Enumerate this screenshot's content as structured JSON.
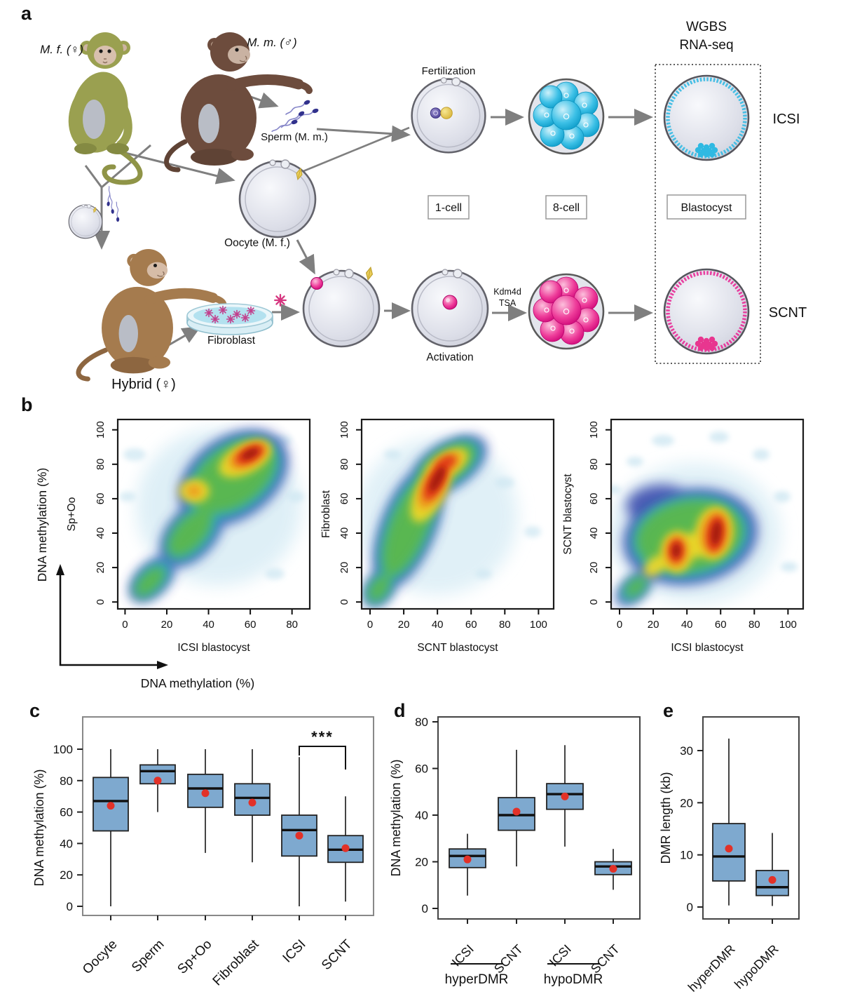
{
  "figure": {
    "panel_labels": {
      "a": "a",
      "b": "b",
      "c": "c",
      "d": "d",
      "e": "e"
    }
  },
  "panel_a": {
    "female_monkey_label": "M. f. (♀)",
    "male_monkey_label": "M. m. (♂)",
    "sperm_label": "Sperm (M. m.)",
    "oocyte_label": "Oocyte (M. f.)",
    "hybrid_label": "Hybrid (♀)",
    "fibroblast_label": "Fibroblast",
    "fertilization_label": "Fertilization",
    "activation_label": "Activation",
    "kdm4d_label": "Kdm4d",
    "tsa_label": "TSA",
    "stage_1cell": "1-cell",
    "stage_8cell": "8-cell",
    "stage_blastocyst": "Blastocyst",
    "assay_line1": "WGBS",
    "assay_line2": "RNA-seq",
    "icsi_label": "ICSI",
    "scnt_label": "SCNT"
  },
  "panel_b": {
    "outer_ylabel": "DNA methylation (%)",
    "outer_xlabel": "DNA methylation (%)",
    "plots": [
      {
        "ylabel": "Sp+Oo",
        "xlabel": "ICSI blastocyst"
      },
      {
        "ylabel": "Fibroblast",
        "xlabel": "SCNT blastocyst"
      },
      {
        "ylabel": "SCNT blastocyst",
        "xlabel": "ICSI blastocyst"
      }
    ]
  },
  "panel_c": {
    "ylabel": "DNA methylation (%)",
    "significance": "***"
  },
  "panel_d": {
    "ylabel": "DNA methylation (%)",
    "groups": [
      {
        "label": "hyperDMR"
      },
      {
        "label": "hypoDMR"
      }
    ]
  },
  "panel_e": {
    "ylabel": "DMR length (kb)"
  },
  "chart_data": [
    {
      "type": "heatmap",
      "subtype": "smoothed-density-scatter",
      "title": "Sp+Oo vs ICSI blastocyst DNA methylation",
      "xlabel": "ICSI blastocyst",
      "ylabel": "Sp+Oo",
      "xlim": [
        0,
        88
      ],
      "ylim": [
        0,
        105
      ],
      "xticks": [
        0,
        20,
        40,
        60,
        80
      ],
      "yticks": [
        0,
        20,
        40,
        60,
        80,
        100
      ],
      "density_peaks": [
        {
          "x": 59,
          "y": 85,
          "intensity": "high (red)"
        },
        {
          "x": 33,
          "y": 65,
          "intensity": "medium (yellow)"
        },
        {
          "x": 12,
          "y": 12,
          "intensity": "low (green), diagonal tail to origin"
        }
      ]
    },
    {
      "type": "heatmap",
      "subtype": "smoothed-density-scatter",
      "title": "Fibroblast vs SCNT blastocyst DNA methylation",
      "xlabel": "SCNT blastocyst",
      "ylabel": "Fibroblast",
      "xlim": [
        0,
        105
      ],
      "ylim": [
        0,
        105
      ],
      "xticks": [
        0,
        20,
        40,
        60,
        80,
        100
      ],
      "yticks": [
        0,
        20,
        40,
        60,
        80,
        100
      ],
      "density_peaks": [
        {
          "x": 39,
          "y": 70,
          "intensity": "high (red), elongated 30-50 x 55-85"
        },
        {
          "x": 23,
          "y": 44,
          "intensity": "medium (green band down to origin)"
        }
      ]
    },
    {
      "type": "heatmap",
      "subtype": "smoothed-density-scatter",
      "title": "SCNT blastocyst vs ICSI blastocyst DNA methylation",
      "xlabel": "ICSI blastocyst",
      "ylabel": "SCNT blastocyst",
      "xlim": [
        0,
        105
      ],
      "ylim": [
        0,
        105
      ],
      "xticks": [
        0,
        20,
        40,
        60,
        80,
        100
      ],
      "yticks": [
        0,
        20,
        40,
        60,
        80,
        100
      ],
      "density_peaks": [
        {
          "x": 33,
          "y": 30,
          "intensity": "high (red)"
        },
        {
          "x": 57,
          "y": 40,
          "intensity": "high (red, larger)"
        },
        {
          "x": 10,
          "y": 8,
          "intensity": "green tail to origin; sparse speckles above y=70"
        }
      ]
    },
    {
      "type": "box",
      "title": "Panel c: DNA methylation (%) by sample",
      "ylabel": "DNA methylation (%)",
      "ylim": [
        0,
        118
      ],
      "yticks": [
        0,
        20,
        40,
        60,
        80,
        100
      ],
      "significance": {
        "pair": [
          "ICSI",
          "SCNT"
        ],
        "stars": "***"
      },
      "boxes": [
        {
          "label": "Oocyte",
          "whisker_low": 0,
          "q1": 48,
          "median": 67,
          "q3": 82,
          "whisker_high": 100,
          "mean": 64
        },
        {
          "label": "Sperm",
          "whisker_low": 60,
          "q1": 78,
          "median": 86,
          "q3": 90,
          "whisker_high": 100,
          "mean": 80
        },
        {
          "label": "Sp+Oo",
          "whisker_low": 34,
          "q1": 63,
          "median": 75,
          "q3": 84,
          "whisker_high": 100,
          "mean": 72
        },
        {
          "label": "Fibroblast",
          "whisker_low": 28,
          "q1": 58,
          "median": 69,
          "q3": 78,
          "whisker_high": 100,
          "mean": 66
        },
        {
          "label": "ICSI",
          "whisker_low": 0,
          "q1": 32,
          "median": 48.5,
          "q3": 58,
          "whisker_high": 95,
          "mean": 45
        },
        {
          "label": "SCNT",
          "whisker_low": 3,
          "q1": 28,
          "median": 36,
          "q3": 45,
          "whisker_high": 70,
          "mean": 37
        }
      ]
    },
    {
      "type": "box",
      "title": "Panel d: DNA methylation (%) in DMRs",
      "ylabel": "DNA methylation (%)",
      "ylim": [
        0,
        82
      ],
      "yticks": [
        0,
        20,
        40,
        60,
        80
      ],
      "boxes": [
        {
          "label": "ICSI",
          "group": "hyperDMR",
          "whisker_low": 5.5,
          "q1": 17.5,
          "median": 22.5,
          "q3": 25.5,
          "whisker_high": 32,
          "mean": 21
        },
        {
          "label": "SCNT",
          "group": "hyperDMR",
          "whisker_low": 18,
          "q1": 33.5,
          "median": 40,
          "q3": 47.5,
          "whisker_high": 68,
          "mean": 41.5
        },
        {
          "label": "ICSI",
          "group": "hypoDMR",
          "whisker_low": 26.5,
          "q1": 42.5,
          "median": 49,
          "q3": 53.5,
          "whisker_high": 70,
          "mean": 48
        },
        {
          "label": "SCNT",
          "group": "hypoDMR",
          "whisker_low": 8,
          "q1": 14.5,
          "median": 18,
          "q3": 20,
          "whisker_high": 25.5,
          "mean": 17
        }
      ]
    },
    {
      "type": "box",
      "title": "Panel e: DMR length (kb)",
      "ylabel": "DMR length (kb)",
      "ylim": [
        0,
        36
      ],
      "yticks": [
        0,
        10,
        20,
        30
      ],
      "boxes": [
        {
          "label": "hyperDMR",
          "whisker_low": 0.3,
          "q1": 5,
          "median": 9.7,
          "q3": 16,
          "whisker_high": 32.3,
          "mean": 11.2
        },
        {
          "label": "hypoDMR",
          "whisker_low": 0.2,
          "q1": 2.2,
          "median": 3.8,
          "q3": 7,
          "whisker_high": 14.2,
          "mean": 5.2
        }
      ]
    }
  ],
  "colors": {
    "box_fill": "#7ea9cf",
    "mean_dot": "#e23128",
    "icsi_accent": "#3fbde4",
    "scnt_accent": "#e8369b",
    "arrow": "#7f7f7f",
    "density_red": "#e03414",
    "density_green": "#5cb84c"
  }
}
